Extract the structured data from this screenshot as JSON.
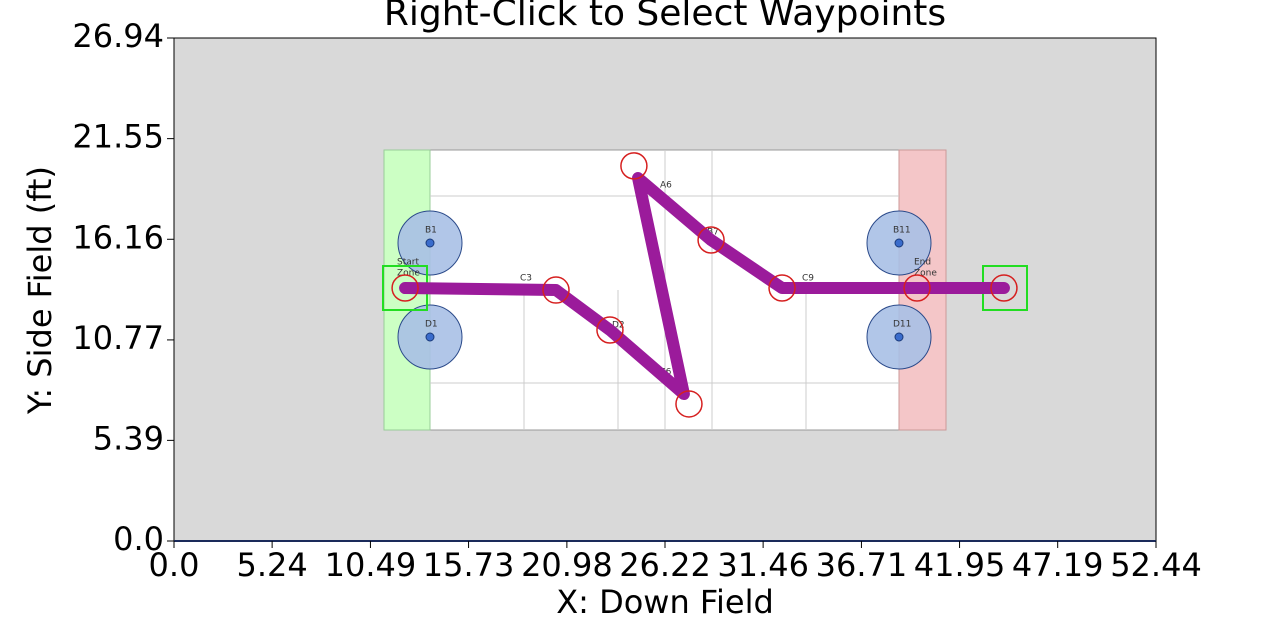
{
  "chart_data": {
    "type": "line",
    "title": "Right-Click to Select Waypoints",
    "xlabel": "X: Down Field",
    "ylabel": "Y: Side Field (ft)",
    "xlim": [
      0,
      52.44
    ],
    "ylim": [
      0,
      26.94
    ],
    "xticks": [
      {
        "value": 0,
        "label": "0.0"
      },
      5.24,
      10.49,
      15.73,
      20.98,
      26.22,
      31.46,
      36.71,
      41.95,
      47.19,
      52.44
    ],
    "yticks": [
      {
        "value": 0,
        "label": "0.0"
      },
      5.39,
      10.77,
      16.16,
      21.55,
      26.94
    ],
    "series": [
      {
        "type": "line",
        "color": "#9b1b9b",
        "x": [
          12.34,
          20.4,
          23.28,
          27.23,
          24.78,
          28.68,
          32.47,
          44.32
        ],
        "values": [
          13.55,
          13.44,
          11.3,
          7.87,
          19.44,
          16.12,
          13.55,
          13.55
        ]
      },
      {
        "type": "scatter",
        "color": "#d62020",
        "x": [
          12.34,
          20.4,
          23.28,
          24.56,
          27.5,
          28.68,
          32.47,
          39.68,
          44.32
        ],
        "values": [
          13.55,
          13.44,
          11.3,
          20.09,
          7.34,
          16.12,
          13.55,
          13.55,
          13.55
        ]
      }
    ],
    "field_labels": [
      "Start",
      "Zone",
      "End",
      "Zone",
      "B1",
      "D1",
      "B11",
      "D11",
      "C3",
      "C9",
      "A6",
      "B7",
      "D2",
      "E6"
    ]
  }
}
